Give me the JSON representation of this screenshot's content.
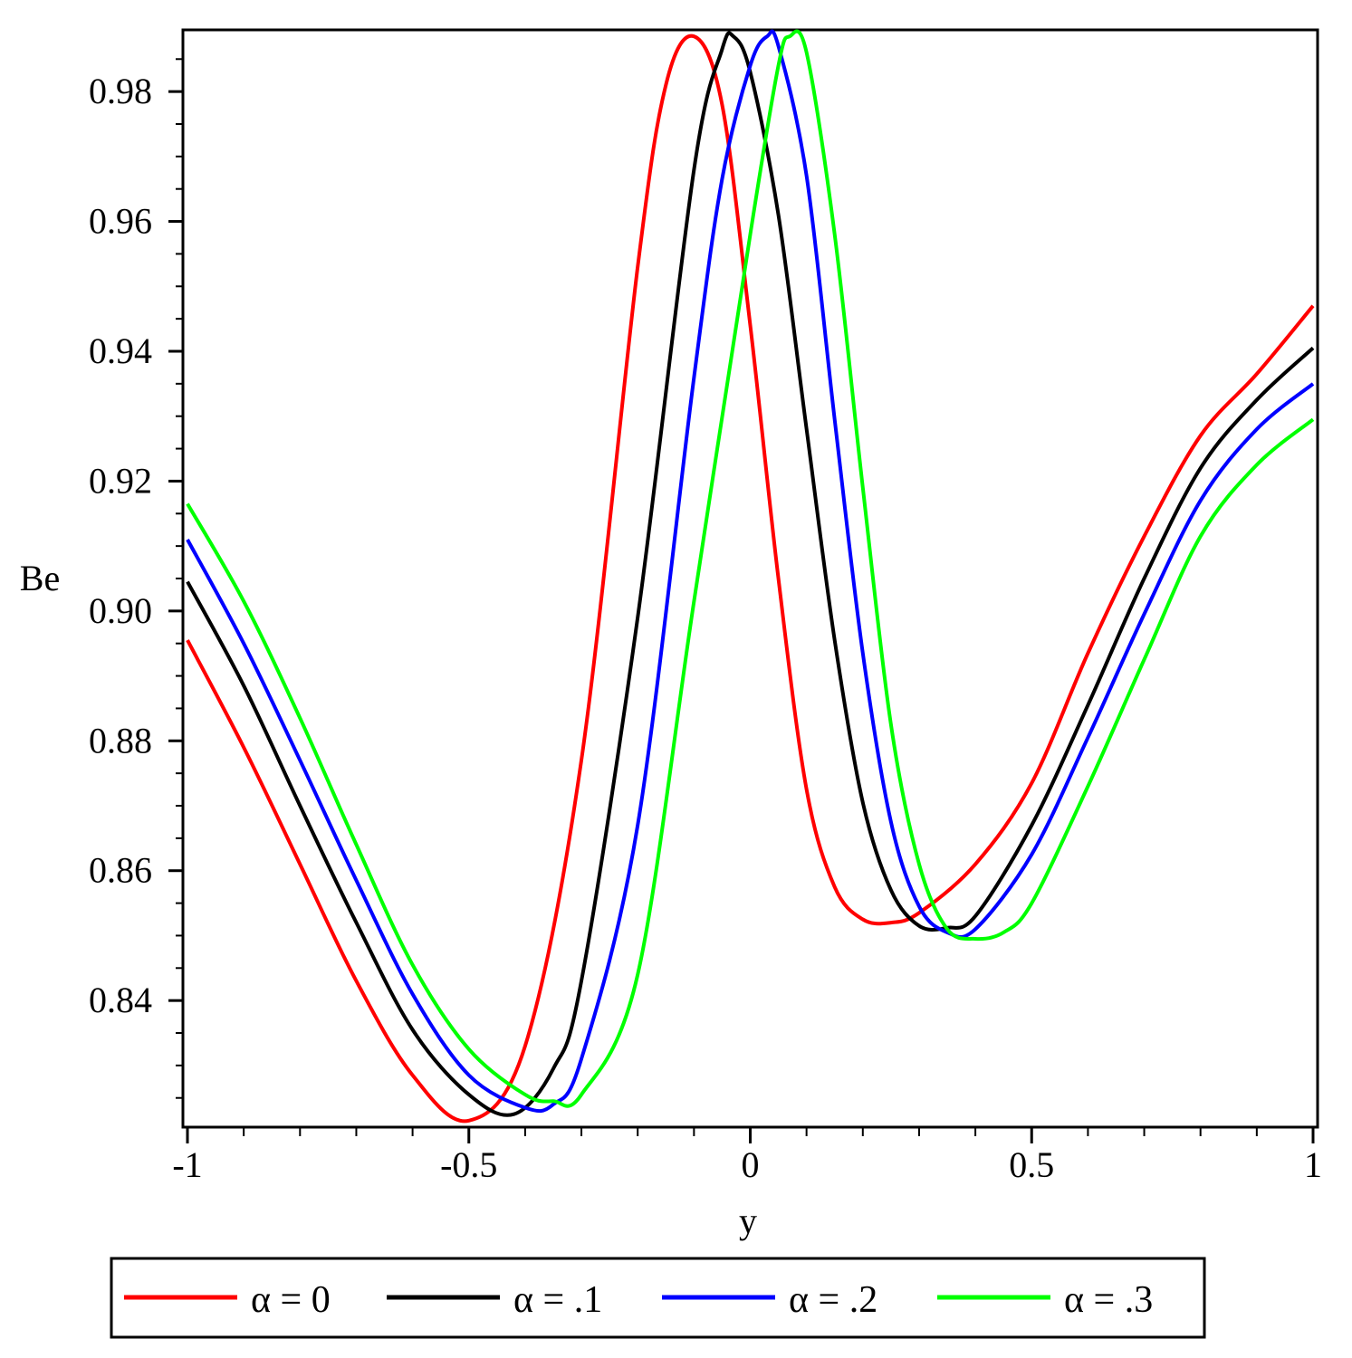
{
  "chart_data": {
    "type": "line",
    "title": "",
    "xlabel": "y",
    "ylabel": "Be",
    "xlim": [
      -1,
      1
    ],
    "ylim": [
      0.8205,
      0.9895
    ],
    "x_ticks": [
      -1,
      -0.5,
      0,
      0.5,
      1
    ],
    "x_tick_labels": [
      "-1",
      "-0.5",
      "0",
      "0.5",
      "1"
    ],
    "y_ticks": [
      0.84,
      0.86,
      0.88,
      0.9,
      0.92,
      0.94,
      0.96,
      0.98
    ],
    "y_tick_labels": [
      "0.84",
      "0.86",
      "0.88",
      "0.90",
      "0.92",
      "0.94",
      "0.96",
      "0.98"
    ],
    "grid": false,
    "legend_position": "bottom",
    "series": [
      {
        "name": "α = 0",
        "color": "#ff0000",
        "x": [
          -1.0,
          -0.9,
          -0.8,
          -0.7,
          -0.6,
          -0.5,
          -0.4,
          -0.3,
          -0.2,
          -0.15,
          -0.1,
          -0.05,
          0.0,
          0.05,
          0.1,
          0.15,
          0.2,
          0.25,
          0.3,
          0.4,
          0.5,
          0.6,
          0.7,
          0.8,
          0.9,
          1.0
        ],
        "y": [
          0.8955,
          0.879,
          0.861,
          0.843,
          0.8285,
          0.8215,
          0.833,
          0.877,
          0.953,
          0.981,
          0.9885,
          0.978,
          0.944,
          0.905,
          0.8725,
          0.8575,
          0.8525,
          0.852,
          0.8535,
          0.861,
          0.8735,
          0.8935,
          0.9115,
          0.927,
          0.9365,
          0.947
        ]
      },
      {
        "name": "α = .1",
        "color": "#000000",
        "x": [
          -1.0,
          -0.9,
          -0.8,
          -0.7,
          -0.6,
          -0.5,
          -0.42,
          -0.35,
          -0.3,
          -0.2,
          -0.1,
          -0.05,
          -0.03,
          0.0,
          0.05,
          0.1,
          0.15,
          0.2,
          0.25,
          0.3,
          0.35,
          0.4,
          0.5,
          0.6,
          0.7,
          0.8,
          0.9,
          1.0
        ],
        "y": [
          0.9045,
          0.8885,
          0.87,
          0.852,
          0.8355,
          0.8255,
          0.8225,
          0.8295,
          0.843,
          0.899,
          0.968,
          0.9865,
          0.9885,
          0.983,
          0.961,
          0.928,
          0.8955,
          0.8705,
          0.857,
          0.8515,
          0.8512,
          0.853,
          0.867,
          0.8855,
          0.905,
          0.922,
          0.9325,
          0.9405
        ]
      },
      {
        "name": "α = .2",
        "color": "#0000ff",
        "x": [
          -1.0,
          -0.9,
          -0.8,
          -0.7,
          -0.6,
          -0.5,
          -0.4,
          -0.35,
          -0.3,
          -0.2,
          -0.1,
          -0.05,
          0.0,
          0.03,
          0.05,
          0.1,
          0.15,
          0.2,
          0.25,
          0.3,
          0.35,
          0.4,
          0.5,
          0.6,
          0.7,
          0.8,
          0.9,
          1.0
        ],
        "y": [
          0.911,
          0.895,
          0.877,
          0.8585,
          0.841,
          0.8285,
          0.8235,
          0.824,
          0.831,
          0.867,
          0.936,
          0.9665,
          0.984,
          0.9885,
          0.987,
          0.967,
          0.9295,
          0.8935,
          0.8675,
          0.8545,
          0.8505,
          0.851,
          0.8625,
          0.8805,
          0.8995,
          0.917,
          0.928,
          0.935
        ]
      },
      {
        "name": "α = .3",
        "color": "#00ff00",
        "x": [
          -1.0,
          -0.9,
          -0.8,
          -0.7,
          -0.6,
          -0.5,
          -0.4,
          -0.35,
          -0.3,
          -0.2,
          -0.1,
          0.0,
          0.05,
          0.07,
          0.1,
          0.15,
          0.2,
          0.25,
          0.3,
          0.35,
          0.4,
          0.45,
          0.5,
          0.6,
          0.7,
          0.8,
          0.9,
          1.0
        ],
        "y": [
          0.9165,
          0.9015,
          0.8835,
          0.864,
          0.8455,
          0.8325,
          0.8255,
          0.8245,
          0.8255,
          0.844,
          0.9015,
          0.958,
          0.984,
          0.9885,
          0.986,
          0.958,
          0.919,
          0.8825,
          0.861,
          0.851,
          0.8495,
          0.8505,
          0.855,
          0.873,
          0.8925,
          0.9115,
          0.9225,
          0.9295
        ]
      }
    ]
  }
}
